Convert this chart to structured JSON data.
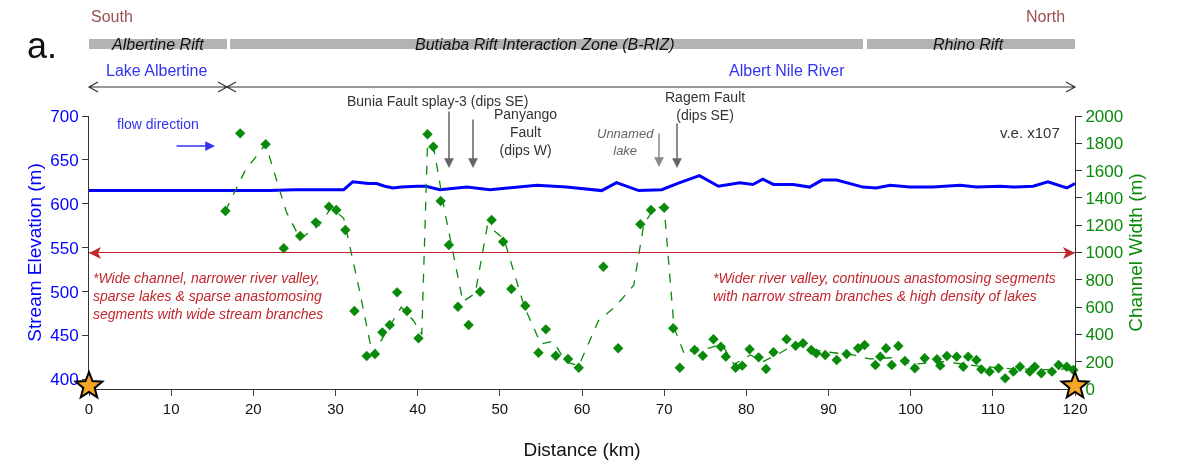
{
  "chart_data": {
    "type": "line",
    "xlabel": "Distance (km)",
    "ylabel": "Stream Elevation (m)",
    "y2label": "Channel Width (m)",
    "xlim": [
      0,
      120
    ],
    "xticks": [
      0,
      10,
      20,
      30,
      40,
      50,
      60,
      70,
      80,
      90,
      100,
      110,
      120
    ],
    "ylim": [
      389,
      700
    ],
    "yticks": [
      400,
      450,
      500,
      550,
      600,
      650,
      700
    ],
    "y2lim": [
      0,
      2000
    ],
    "y2ticks": [
      0,
      200,
      400,
      600,
      800,
      1000,
      1200,
      1400,
      1600,
      1800,
      2000
    ],
    "grid": false,
    "series": [
      {
        "color": "#0000ff",
        "line_style": "solid",
        "marker": "none",
        "x": [
          0,
          17,
          22,
          25,
          30,
          31,
          32.1,
          34,
          35,
          36,
          37,
          38,
          40,
          41,
          42.7,
          46,
          48.8,
          54.5,
          58.1,
          62.4,
          64.2,
          66.9,
          69.7,
          71.9,
          74.3,
          76.6,
          79.2,
          80.8,
          82,
          83.3,
          85.7,
          87.7,
          89.2,
          91,
          94.2,
          95.8,
          97.5,
          99.9,
          102.7,
          106,
          108,
          110.9,
          112.5,
          114.9,
          116.7,
          119,
          120
        ],
        "values": [
          615,
          615,
          615,
          616,
          616,
          616,
          625,
          623,
          623,
          620,
          618,
          619,
          620,
          620,
          616,
          619,
          616,
          621,
          619,
          615,
          624,
          615,
          616,
          624,
          632,
          620,
          624,
          622,
          628,
          622,
          622,
          619,
          627,
          627,
          619,
          618,
          621,
          619,
          619,
          621,
          619,
          620,
          619,
          620,
          625,
          618,
          623
        ]
      },
      {
        "type": "scatter",
        "axis": "y2",
        "color": "#0a8a0a",
        "marker": "diamond",
        "x": [
          16.6,
          18.4,
          21.5,
          23.7,
          25.7,
          27.6,
          29.2,
          30.1,
          31.2,
          32.3,
          33.8,
          34.8,
          35.7,
          36.6,
          37.5,
          38.7,
          40.1,
          41.2,
          41.9,
          42.8,
          43.8,
          44.9,
          46.2,
          47.6,
          49,
          50.4,
          51.4,
          53.1,
          54.7,
          55.6,
          56.8,
          58.3,
          59.6,
          62.6,
          64.4,
          67.1,
          68.4,
          70,
          71.1,
          71.9,
          73.7,
          74.7,
          76,
          76.9,
          77.5,
          78.7,
          79.5,
          80.4,
          81.5,
          82.4,
          83.3,
          84.9,
          86,
          86.9,
          87.9,
          88.5,
          89.6,
          91,
          92.2,
          93.6,
          94.4,
          95.7,
          96.3,
          97,
          97.7,
          98.5,
          99.3,
          100.5,
          101.7,
          103.2,
          103.6,
          104.4,
          105.6,
          106.4,
          107,
          108,
          108.6,
          109.6,
          110.7,
          111.5,
          112.5,
          113.3,
          114.5,
          115.1,
          115.9,
          117.2,
          118,
          119,
          119.8
        ],
        "values": [
          1304,
          1873,
          1793,
          1031,
          1121,
          1221,
          1336,
          1311,
          1165,
          571,
          242,
          256,
          415,
          469,
          708,
          571,
          371,
          1866,
          1775,
          1377,
          1055,
          603,
          469,
          713,
          1238,
          1079,
          733,
          610,
          266,
          437,
          244,
          220,
          156,
          896,
          298,
          1207,
          1311,
          1328,
          445,
          156,
          286,
          244,
          364,
          310,
          237,
          156,
          171,
          291,
          232,
          147,
          269,
          364,
          317,
          335,
          286,
          261,
          249,
          212,
          256,
          298,
          322,
          176,
          237,
          298,
          176,
          315,
          205,
          152,
          225,
          218,
          171,
          242,
          237,
          163,
          237,
          212,
          144,
          127,
          152,
          78,
          127,
          163,
          127,
          163,
          115,
          127,
          176,
          163,
          139
        ]
      },
      {
        "type": "line",
        "axis": "y2",
        "color": "#0a8a0a",
        "line_style": "dashed",
        "marker": "none",
        "x": [
          16.6,
          19,
          21.5,
          24,
          25.7,
          28,
          29.5,
          31,
          33,
          34.5,
          36,
          38,
          39.5,
          40.5,
          41.2,
          42,
          43.3,
          45.5,
          47,
          48.5,
          50.5,
          53,
          55,
          56.5,
          58,
          59.6,
          62,
          64,
          66.3,
          67.5,
          68.8,
          70,
          71.2,
          72.5,
          74,
          75.5,
          77,
          78.5,
          80.5,
          82,
          84,
          86,
          88,
          90,
          93,
          95,
          98,
          100,
          104,
          108,
          112,
          116,
          120
        ],
        "values": [
          1304,
          1600,
          1793,
          1300,
          1100,
          1200,
          1330,
          1250,
          700,
          250,
          400,
          600,
          500,
          400,
          1800,
          1750,
          1300,
          640,
          700,
          1200,
          1100,
          600,
          330,
          350,
          200,
          170,
          500,
          600,
          760,
          1200,
          1330,
          1330,
          450,
          250,
          300,
          300,
          330,
          180,
          250,
          200,
          260,
          330,
          290,
          270,
          250,
          220,
          230,
          180,
          200,
          170,
          150,
          140,
          150
        ]
      }
    ],
    "ref_lines": [
      {
        "axis": "y2",
        "value": 1000,
        "color": "#c0272d"
      }
    ],
    "annotations": [
      "a.",
      "South",
      "North",
      "Albertine Rift",
      "Butiaba Rift Interaction Zone (B-RIZ)",
      "Rhino Rift",
      "Lake Albertine",
      "Albert Nile River",
      "flow direction",
      "v.e. x107",
      "*Wide channel, narrower river valley,\nsparse lakes & sparse anastomosing\nsegments with wide stream branches",
      "*Wider river valley, continuous anastomosing segments\nwith narrow stream branches & high density of lakes",
      "Bunia Fault splay-3 (dips SE)",
      "Panyango\nFault\n(dips W)",
      "Unnamed\nlake",
      "Ragem Fault\n(dips SE)"
    ]
  }
}
